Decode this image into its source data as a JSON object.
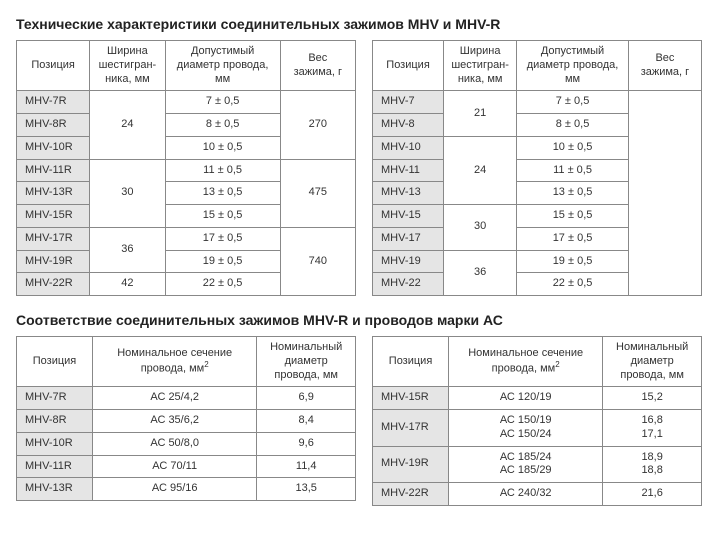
{
  "colors": {
    "text": "#333333",
    "border": "#888888",
    "row_label_bg": "#e5e5e5",
    "bg": "#ffffff"
  },
  "section1": {
    "title": "Технические характеристики соединительных зажимов MHV и MHV-R",
    "headers": {
      "pos": "Позиция",
      "hex": "Ширина шестигран-\nника, мм",
      "dia": "Допустимый диаметр провода, мм",
      "weight": "Вес зажима, г"
    },
    "left": {
      "rows": [
        {
          "pos": "MHV-7R",
          "dia": "7 ± 0,5"
        },
        {
          "pos": "MHV-8R",
          "dia": "8 ± 0,5"
        },
        {
          "pos": "MHV-10R",
          "dia": "10 ± 0,5"
        },
        {
          "pos": "MHV-11R",
          "dia": "11 ± 0,5"
        },
        {
          "pos": "MHV-13R",
          "dia": "13 ± 0,5"
        },
        {
          "pos": "MHV-15R",
          "dia": "15 ± 0,5"
        },
        {
          "pos": "MHV-17R",
          "dia": "17 ± 0,5"
        },
        {
          "pos": "MHV-19R",
          "dia": "19 ± 0,5"
        },
        {
          "pos": "MHV-22R",
          "dia": "22 ± 0,5"
        }
      ],
      "hex_groups": [
        {
          "span": 3,
          "v": "24"
        },
        {
          "span": 3,
          "v": "30"
        },
        {
          "span": 2,
          "v": "36"
        },
        {
          "span": 1,
          "v": "42"
        }
      ],
      "weight_groups": [
        {
          "span": 3,
          "v": "270"
        },
        {
          "span": 3,
          "v": "475"
        },
        {
          "span": 3,
          "v": "740"
        }
      ]
    },
    "right": {
      "rows": [
        {
          "pos": "MHV-7",
          "dia": "7 ± 0,5"
        },
        {
          "pos": "MHV-8",
          "dia": "8 ± 0,5"
        },
        {
          "pos": "MHV-10",
          "dia": "10 ± 0,5"
        },
        {
          "pos": "MHV-11",
          "dia": "11 ± 0,5"
        },
        {
          "pos": "MHV-13",
          "dia": "13 ± 0,5"
        },
        {
          "pos": "MHV-15",
          "dia": "15 ± 0,5"
        },
        {
          "pos": "MHV-17",
          "dia": "17 ± 0,5"
        },
        {
          "pos": "MHV-19",
          "dia": "19 ± 0,5"
        },
        {
          "pos": "MHV-22",
          "dia": "22 ± 0,5"
        }
      ],
      "hex_groups": [
        {
          "span": 2,
          "v": "21"
        },
        {
          "span": 3,
          "v": "24"
        },
        {
          "span": 2,
          "v": "30"
        },
        {
          "span": 2,
          "v": "36"
        }
      ]
    }
  },
  "section2": {
    "title": "Соответствие соединительных зажимов MHV-R и проводов марки АС",
    "headers": {
      "pos": "Позиция",
      "sect_pre": "Номинальное сечение провода, мм",
      "sect_sup": "2",
      "ndia": "Номинальный диаметр провода, мм"
    },
    "left": {
      "rows": [
        {
          "pos": "MHV-7R",
          "sect": "АС 25/4,2",
          "ndia": "6,9"
        },
        {
          "pos": "MHV-8R",
          "sect": "АС 35/6,2",
          "ndia": "8,4"
        },
        {
          "pos": "MHV-10R",
          "sect": "АС 50/8,0",
          "ndia": "9,6"
        },
        {
          "pos": "MHV-11R",
          "sect": "АС 70/11",
          "ndia": "11,4"
        },
        {
          "pos": "MHV-13R",
          "sect": "АС 95/16",
          "ndia": "13,5"
        }
      ]
    },
    "right": {
      "rows": [
        {
          "pos": "MHV-15R",
          "sect": "АС 120/19",
          "ndia": "15,2"
        },
        {
          "pos": "MHV-17R",
          "sect": "АС 150/19\nАС 150/24",
          "ndia": "16,8\n17,1"
        },
        {
          "pos": "MHV-19R",
          "sect": "АС 185/24\nАС 185/29",
          "ndia": "18,9\n18,8"
        },
        {
          "pos": "MHV-22R",
          "sect": "АС 240/32",
          "ndia": "21,6"
        }
      ]
    }
  }
}
